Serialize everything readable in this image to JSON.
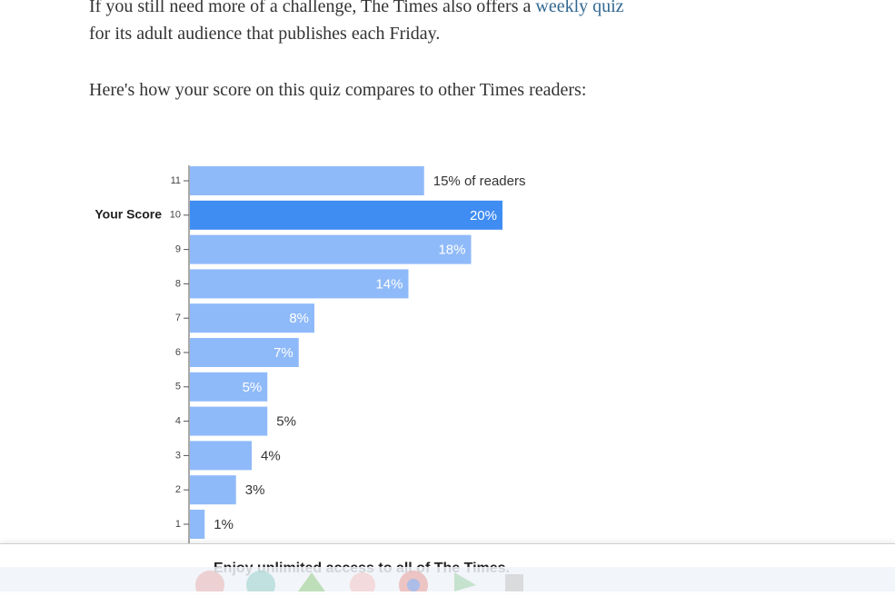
{
  "article": {
    "paragraph_1": {
      "before": "If you still need more of a challenge, The Times also offers a ",
      "link": "weekly quiz",
      "after": " for its adult audience that publishes each Friday."
    },
    "paragraph_2": "Here's how your score on this quiz compares to other Times readers:"
  },
  "chart_data": {
    "type": "bar",
    "orientation": "horizontal",
    "annotation": "Your Score",
    "highlight_category": "10",
    "categories": [
      "11",
      "10",
      "9",
      "8",
      "7",
      "6",
      "5",
      "4",
      "3",
      "2",
      "1"
    ],
    "values": [
      15,
      20,
      18,
      14,
      8,
      7,
      5,
      5,
      4,
      3,
      1
    ],
    "value_labels": [
      "15% of readers",
      "20%",
      "18%",
      "14%",
      "8%",
      "7%",
      "5%",
      "5%",
      "4%",
      "3%",
      "1%"
    ],
    "color": "#8fbaf9",
    "highlight_color": "#3f8cf2"
  },
  "banner": {
    "text": "Enjoy unlimited access to all of The Times."
  }
}
